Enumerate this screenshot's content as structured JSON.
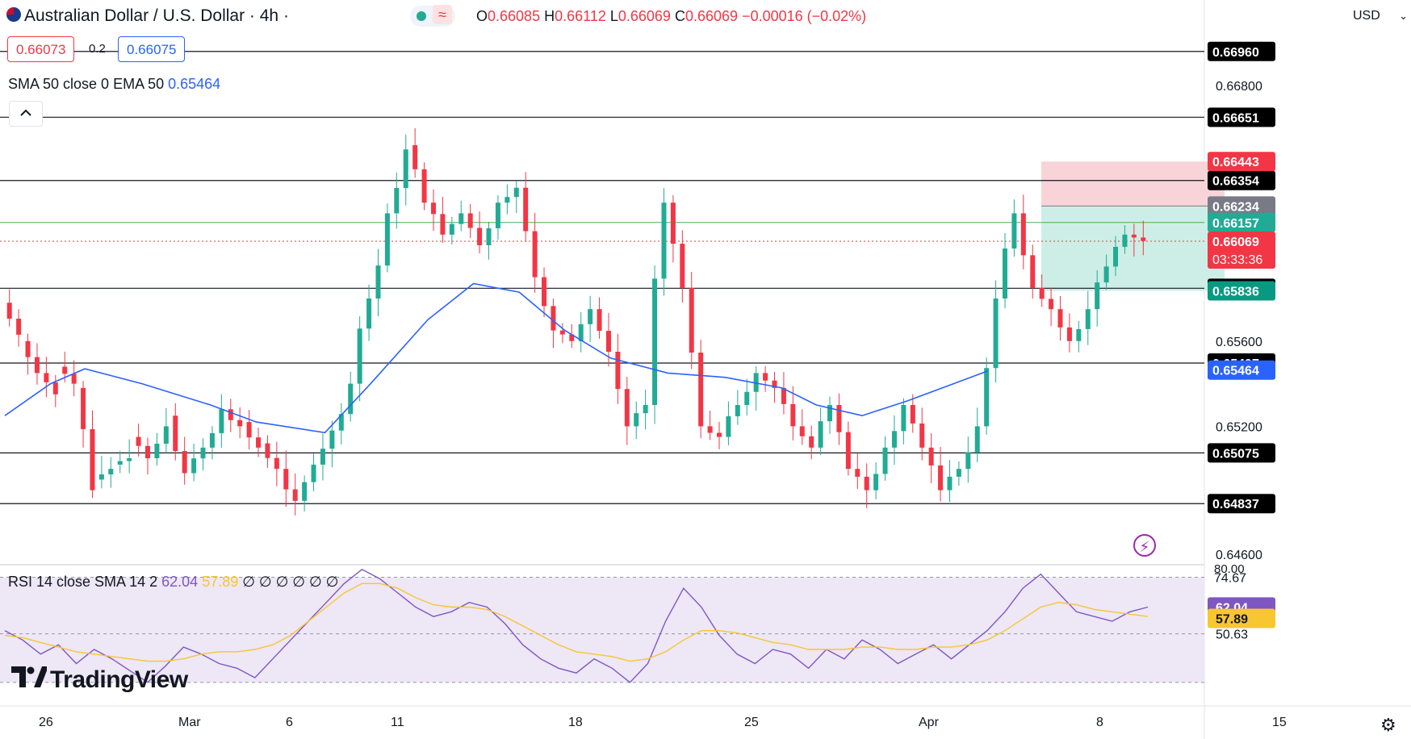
{
  "header": {
    "title": "Australian Dollar / U.S. Dollar · 4h ·",
    "ohlc": {
      "open_label": "O",
      "open": "0.66085",
      "high_label": "H",
      "high": "0.66112",
      "low_label": "L",
      "low": "0.66069",
      "close_label": "C",
      "close": "0.66069",
      "change": "−0.00016 (−0.02%)"
    },
    "sell_price": "0.66073",
    "spread": "0.2",
    "buy_price": "0.66075",
    "currency": "USD"
  },
  "indicator": {
    "label": "SMA 50 close 0 EMA 50",
    "value": "0.65464"
  },
  "rsi_label": {
    "label": "RSI 14 close SMA 14 2",
    "rsi_value": "62.04",
    "sma_value": "57.89",
    "extras": "∅ ∅ ∅ ∅ ∅ ∅"
  },
  "branding": {
    "logo_text": "TradingView"
  },
  "colors": {
    "up": "#22ab94",
    "down": "#f23645",
    "ema": "#2962ff",
    "rsi": "#7e57c2",
    "rsi_sma": "#f7c631",
    "rsi_band": "#ede7f6"
  },
  "chart_data": [
    {
      "type": "candlestick",
      "title": "Australian Dollar / U.S. Dollar · 4h",
      "ylim": [
        0.6455,
        0.6705
      ],
      "x_tick_labels": [
        "26",
        "Mar",
        "6",
        "11",
        "18",
        "25",
        "Apr",
        "8",
        "15"
      ],
      "y_tick_labels": [
        "0.66800",
        "0.65600",
        "0.65200",
        "0.64600"
      ],
      "horizontal_levels": [
        0.6696,
        0.66651,
        0.66354,
        0.65848,
        0.65497,
        0.65075,
        0.64837
      ],
      "level_labels": [
        "0.66960",
        "0.66651",
        "0.66354",
        "0.65848",
        "0.65497",
        "0.65075",
        "0.64837"
      ],
      "green_level": 0.66157,
      "current_price": "0.66069",
      "countdown": "03:33:36",
      "position": {
        "stop": 0.66443,
        "entry": 0.66234,
        "target": 0.65836,
        "stop_label": "0.66443",
        "entry_label": "0.66234",
        "target_label": "0.65836"
      },
      "ema_label": "0.65464",
      "candle_anchors": [
        [
          0.6578,
          0.6563
        ],
        [
          0.656,
          0.6545
        ],
        [
          0.6545,
          0.6535
        ],
        [
          0.6548,
          0.654
        ],
        [
          0.6538,
          0.649
        ],
        [
          0.6495,
          0.65
        ],
        [
          0.6502,
          0.6505
        ],
        [
          0.6515,
          0.6505
        ],
        [
          0.6505,
          0.652
        ],
        [
          0.6525,
          0.6498
        ],
        [
          0.6498,
          0.651
        ],
        [
          0.651,
          0.6528
        ],
        [
          0.6528,
          0.652
        ],
        [
          0.6522,
          0.651
        ],
        [
          0.6512,
          0.65
        ],
        [
          0.65,
          0.6485
        ],
        [
          0.6485,
          0.6502
        ],
        [
          0.6502,
          0.6518
        ],
        [
          0.6518,
          0.654
        ],
        [
          0.654,
          0.658
        ],
        [
          0.658,
          0.662
        ],
        [
          0.662,
          0.665
        ],
        [
          0.6652,
          0.6625
        ],
        [
          0.6625,
          0.661
        ],
        [
          0.661,
          0.662
        ],
        [
          0.662,
          0.6605
        ],
        [
          0.6605,
          0.6625
        ],
        [
          0.6625,
          0.6632
        ],
        [
          0.6632,
          0.659
        ],
        [
          0.659,
          0.6565
        ],
        [
          0.6565,
          0.656
        ],
        [
          0.656,
          0.6575
        ],
        [
          0.6575,
          0.6555
        ],
        [
          0.6555,
          0.652
        ],
        [
          0.652,
          0.653
        ],
        [
          0.653,
          0.6625
        ],
        [
          0.6625,
          0.6585
        ],
        [
          0.6585,
          0.652
        ],
        [
          0.652,
          0.6515
        ],
        [
          0.6515,
          0.653
        ],
        [
          0.653,
          0.6545
        ],
        [
          0.6545,
          0.6538
        ],
        [
          0.6538,
          0.652
        ],
        [
          0.652,
          0.651
        ],
        [
          0.651,
          0.653
        ],
        [
          0.653,
          0.65
        ],
        [
          0.65,
          0.649
        ],
        [
          0.649,
          0.651
        ],
        [
          0.651,
          0.653
        ],
        [
          0.653,
          0.651
        ],
        [
          0.651,
          0.649
        ],
        [
          0.649,
          0.65
        ],
        [
          0.65,
          0.652
        ],
        [
          0.652,
          0.658
        ],
        [
          0.658,
          0.662
        ],
        [
          0.662,
          0.6585
        ],
        [
          0.6585,
          0.6575
        ],
        [
          0.6575,
          0.656
        ],
        [
          0.656,
          0.6575
        ],
        [
          0.6575,
          0.6595
        ],
        [
          0.6595,
          0.661
        ],
        [
          0.661,
          0.6607
        ]
      ],
      "ema": [
        [
          0,
          0.6525
        ],
        [
          0.04,
          0.654
        ],
        [
          0.07,
          0.6547
        ],
        [
          0.12,
          0.654
        ],
        [
          0.18,
          0.653
        ],
        [
          0.22,
          0.6522
        ],
        [
          0.28,
          0.6517
        ],
        [
          0.32,
          0.654
        ],
        [
          0.37,
          0.657
        ],
        [
          0.41,
          0.6587
        ],
        [
          0.45,
          0.6583
        ],
        [
          0.49,
          0.6565
        ],
        [
          0.53,
          0.6552
        ],
        [
          0.58,
          0.6545
        ],
        [
          0.63,
          0.6543
        ],
        [
          0.68,
          0.6538
        ],
        [
          0.71,
          0.653
        ],
        [
          0.75,
          0.6525
        ],
        [
          0.79,
          0.6532
        ],
        [
          0.83,
          0.654
        ],
        [
          0.86,
          0.6546
        ]
      ]
    },
    {
      "type": "line",
      "title": "RSI 14 close SMA 14 2",
      "ylim": [
        20,
        80
      ],
      "bands": [
        30,
        50.63,
        74.67
      ],
      "y_tick_labels": [
        "80.00",
        "74.67",
        "50.63"
      ],
      "series": [
        {
          "name": "RSI",
          "values": [
            52,
            48,
            42,
            46,
            38,
            44,
            40,
            35,
            30,
            37,
            45,
            42,
            38,
            36,
            32,
            40,
            48,
            56,
            64,
            72,
            78,
            74,
            68,
            62,
            58,
            60,
            64,
            62,
            55,
            46,
            40,
            36,
            34,
            40,
            36,
            30,
            38,
            56,
            70,
            62,
            50,
            42,
            38,
            44,
            42,
            36,
            44,
            40,
            48,
            44,
            38,
            42,
            46,
            40,
            46,
            52,
            60,
            70,
            76,
            68,
            60,
            58,
            56,
            60,
            62
          ]
        },
        {
          "name": "SMA",
          "values": [
            50,
            49,
            47,
            45,
            43,
            42,
            41,
            40,
            39,
            39,
            40,
            42,
            43,
            43,
            44,
            46,
            50,
            56,
            62,
            68,
            72,
            72,
            70,
            66,
            63,
            62,
            62,
            61,
            58,
            54,
            50,
            46,
            43,
            42,
            41,
            39,
            40,
            43,
            48,
            52,
            52,
            51,
            49,
            47,
            46,
            44,
            44,
            44,
            45,
            45,
            44,
            44,
            45,
            45,
            46,
            48,
            52,
            57,
            62,
            64,
            63,
            61,
            60,
            59,
            58
          ]
        }
      ],
      "rsi_value": "62.04",
      "sma_value": "57.89"
    }
  ]
}
